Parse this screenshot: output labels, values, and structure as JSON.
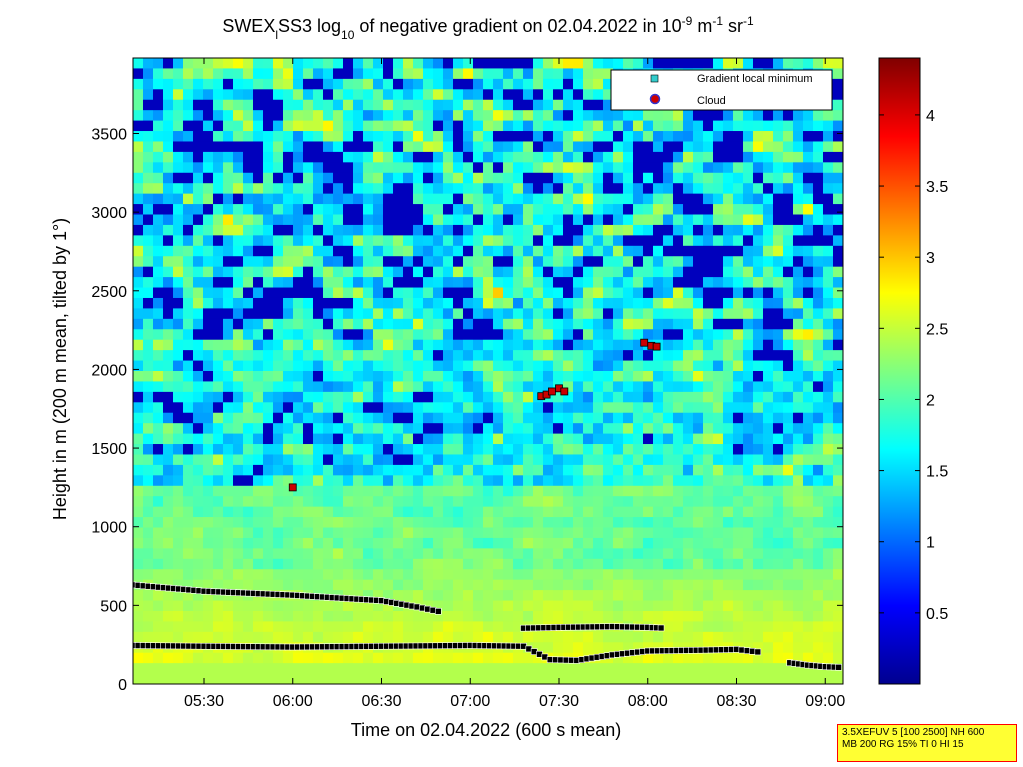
{
  "chart_data": {
    "type": "heatmap",
    "title": {
      "pre": "SWEX",
      "sub1": "l",
      "mid": "SS3 log",
      "sub2": "10",
      "post": " of negative gradient on 02.04.2022 in 10",
      "sup1": "-9",
      "unit1": " m",
      "sup2": "-1",
      "unit2": " sr",
      "sup3": "-1"
    },
    "xlabel": "Time on 02.04.2022 (600 s mean)",
    "ylabel": "Height in m (200 m mean, tilted by 1°)",
    "x_range_hours": [
      5.1,
      9.1
    ],
    "x_ticks": [
      {
        "h": 5.5,
        "label": "05:30"
      },
      {
        "h": 6.0,
        "label": "06:00"
      },
      {
        "h": 6.5,
        "label": "06:30"
      },
      {
        "h": 7.0,
        "label": "07:00"
      },
      {
        "h": 7.5,
        "label": "07:30"
      },
      {
        "h": 8.0,
        "label": "08:00"
      },
      {
        "h": 8.5,
        "label": "08:30"
      },
      {
        "h": 9.0,
        "label": "09:00"
      }
    ],
    "ylim": [
      0,
      3980
    ],
    "y_ticks": [
      0,
      500,
      1000,
      1500,
      2000,
      2500,
      3000,
      3500
    ],
    "colorbar": {
      "range": [
        0,
        4.4
      ],
      "ticks": [
        "0.5",
        "1",
        "1.5",
        "2",
        "2.5",
        "3",
        "3.5",
        "4"
      ],
      "colormap": "jet"
    },
    "legend": {
      "placement": "top-right",
      "items": [
        {
          "label": "Gradient local minimum",
          "color": "#33cccc",
          "marker": "square"
        },
        {
          "label": "Cloud",
          "color": "#cc0000",
          "marker": "circle"
        }
      ]
    },
    "gradient_minimum_series": [
      {
        "name": "",
        "points": [
          [
            5.1,
            630
          ],
          [
            5.5,
            590
          ],
          [
            6.0,
            565
          ],
          [
            6.5,
            530
          ],
          [
            6.7,
            490
          ],
          [
            6.85,
            455
          ]
        ]
      },
      {
        "name": "",
        "points": [
          [
            5.1,
            245
          ],
          [
            5.5,
            240
          ],
          [
            6.0,
            235
          ],
          [
            6.5,
            240
          ],
          [
            7.0,
            245
          ],
          [
            7.3,
            240
          ],
          [
            7.45,
            155
          ],
          [
            7.6,
            150
          ],
          [
            7.8,
            185
          ],
          [
            8.0,
            210
          ],
          [
            8.3,
            215
          ],
          [
            8.5,
            220
          ],
          [
            8.65,
            200
          ]
        ]
      },
      {
        "name": "",
        "points": [
          [
            7.3,
            355
          ],
          [
            7.5,
            360
          ],
          [
            7.8,
            365
          ],
          [
            8.0,
            360
          ],
          [
            8.1,
            355
          ]
        ]
      },
      {
        "name": "",
        "points": [
          [
            8.8,
            135
          ],
          [
            8.9,
            120
          ],
          [
            9.0,
            110
          ],
          [
            9.1,
            105
          ]
        ]
      }
    ],
    "cloud_points": [
      [
        6.0,
        1250
      ],
      [
        7.4,
        1830
      ],
      [
        7.43,
        1840
      ],
      [
        7.46,
        1860
      ],
      [
        7.5,
        1880
      ],
      [
        7.53,
        1860
      ],
      [
        7.98,
        2170
      ],
      [
        8.02,
        2150
      ],
      [
        8.05,
        2145
      ]
    ]
  },
  "info_box": {
    "line1": "3.5XEFUV 5 [100 2500] NH 600",
    "line2": "MB 200 RG 15% TI 0 HI 15"
  }
}
